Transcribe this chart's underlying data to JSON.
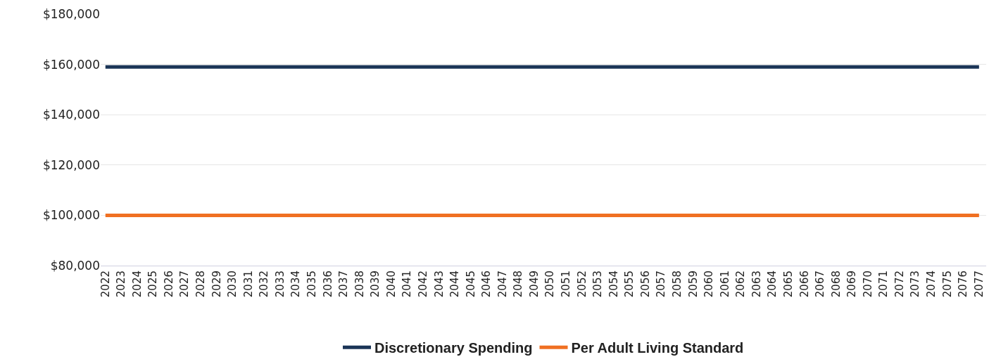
{
  "chart_data": {
    "type": "line",
    "categories": [
      "2022",
      "2023",
      "2024",
      "2025",
      "2026",
      "2027",
      "2028",
      "2029",
      "2030",
      "2031",
      "2032",
      "2033",
      "2034",
      "2035",
      "2036",
      "2037",
      "2038",
      "2039",
      "2040",
      "2041",
      "2042",
      "2043",
      "2044",
      "2045",
      "2046",
      "2047",
      "2048",
      "2049",
      "2050",
      "2051",
      "2052",
      "2053",
      "2054",
      "2055",
      "2056",
      "2057",
      "2058",
      "2059",
      "2060",
      "2061",
      "2062",
      "2063",
      "2064",
      "2065",
      "2066",
      "2067",
      "2068",
      "2069",
      "2070",
      "2071",
      "2072",
      "2073",
      "2074",
      "2075",
      "2076",
      "2077"
    ],
    "series": [
      {
        "name": "Discretionary Spending",
        "color": "#1b3557",
        "values": [
          159000,
          159000,
          159000,
          159000,
          159000,
          159000,
          159000,
          159000,
          159000,
          159000,
          159000,
          159000,
          159000,
          159000,
          159000,
          159000,
          159000,
          159000,
          159000,
          159000,
          159000,
          159000,
          159000,
          159000,
          159000,
          159000,
          159000,
          159000,
          159000,
          159000,
          159000,
          159000,
          159000,
          159000,
          159000,
          159000,
          159000,
          159000,
          159000,
          159000,
          159000,
          159000,
          159000,
          159000,
          159000,
          159000,
          159000,
          159000,
          159000,
          159000,
          159000,
          159000,
          159000,
          159000,
          159000,
          159000
        ]
      },
      {
        "name": "Per Adult Living Standard",
        "color": "#f07022",
        "values": [
          100000,
          100000,
          100000,
          100000,
          100000,
          100000,
          100000,
          100000,
          100000,
          100000,
          100000,
          100000,
          100000,
          100000,
          100000,
          100000,
          100000,
          100000,
          100000,
          100000,
          100000,
          100000,
          100000,
          100000,
          100000,
          100000,
          100000,
          100000,
          100000,
          100000,
          100000,
          100000,
          100000,
          100000,
          100000,
          100000,
          100000,
          100000,
          100000,
          100000,
          100000,
          100000,
          100000,
          100000,
          100000,
          100000,
          100000,
          100000,
          100000,
          100000,
          100000,
          100000,
          100000,
          100000,
          100000,
          100000
        ]
      }
    ],
    "ylim": [
      80000,
      180000
    ],
    "yticks": [
      {
        "value": 80000,
        "label": "$80,000"
      },
      {
        "value": 100000,
        "label": "$100,000"
      },
      {
        "value": 120000,
        "label": "$120,000"
      },
      {
        "value": 140000,
        "label": "$140,000"
      },
      {
        "value": 160000,
        "label": "$160,000"
      },
      {
        "value": 180000,
        "label": "$180,000"
      }
    ],
    "grid": "y",
    "legend": "bottom",
    "marker": "none",
    "line_style": "solid"
  }
}
